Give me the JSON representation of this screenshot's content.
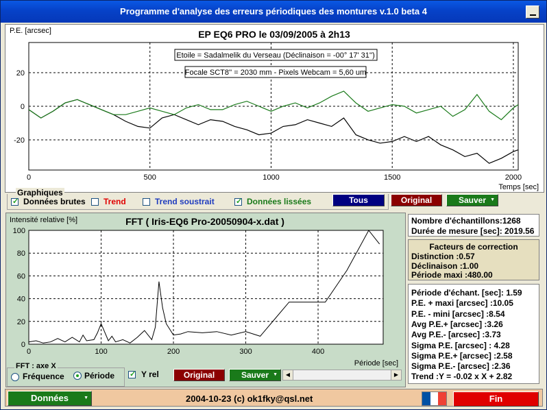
{
  "window": {
    "title": "Programme d'analyse des erreurs périodiques des montures v.1.0 beta 4"
  },
  "colors": {
    "accent_green": "#1a7a1a",
    "accent_red": "#e00000",
    "navy": "#000080",
    "maroon": "#8b0000",
    "fft_bg": "#c8dcc8",
    "status_bg": "#f0c8a0"
  },
  "top_chart": {
    "title": "EP EQ6 PRO le 03/09/2005 à 2h13",
    "ylabel": "P.E. [arcsec]",
    "xlabel": "Temps [sec]",
    "annotation_star": "Etoile = Sadalmelik du Verseau (Déclinaison = -00° 17' 31'')",
    "annotation_optics": "Focale SCT8'' = 2030 mm - Pixels Webcam = 5,60 um",
    "x_ticks": [
      "0",
      "500",
      "1000",
      "1500",
      "2000"
    ],
    "y_ticks": [
      "20",
      "0",
      "-20"
    ]
  },
  "chart_data": [
    {
      "type": "line",
      "title": "EP EQ6 PRO le 03/09/2005 à 2h13",
      "xlabel": "Temps [sec]",
      "ylabel": "P.E. [arcsec]",
      "xlim": [
        0,
        2020
      ],
      "ylim": [
        -38,
        38
      ],
      "grid": true,
      "series": [
        {
          "name": "Données brutes",
          "color": "#000000",
          "x": [
            0,
            50,
            100,
            150,
            200,
            250,
            300,
            350,
            400,
            450,
            500,
            550,
            600,
            650,
            700,
            750,
            800,
            850,
            900,
            950,
            1000,
            1050,
            1100,
            1150,
            1200,
            1250,
            1300,
            1350,
            1400,
            1450,
            1500,
            1550,
            1600,
            1650,
            1700,
            1750,
            1800,
            1850,
            1900,
            1950,
            2000,
            2020
          ],
          "y": [
            -2,
            -7,
            -3,
            2,
            4,
            1,
            -2,
            -5,
            -9,
            -12,
            -13,
            -7,
            -5,
            -8,
            -11,
            -8,
            -9,
            -12,
            -14,
            -17,
            -16,
            -12,
            -11,
            -8,
            -10,
            -12,
            -7,
            -17,
            -20,
            -22,
            -21,
            -18,
            -21,
            -18,
            -23,
            -26,
            -30,
            -28,
            -34,
            -31,
            -27,
            -26
          ]
        },
        {
          "name": "Données lissées",
          "color": "#1a7a1a",
          "x": [
            0,
            50,
            100,
            150,
            200,
            250,
            300,
            350,
            400,
            450,
            500,
            550,
            600,
            650,
            700,
            750,
            800,
            850,
            900,
            950,
            1000,
            1050,
            1100,
            1150,
            1200,
            1250,
            1300,
            1350,
            1400,
            1450,
            1500,
            1550,
            1600,
            1650,
            1700,
            1750,
            1800,
            1850,
            1900,
            1950,
            2000,
            2020
          ],
          "y": [
            -2,
            -7,
            -3,
            2,
            4,
            1,
            -2,
            -5,
            -5,
            -3,
            -1,
            -3,
            -5,
            -1,
            1,
            -2,
            -2,
            1,
            3,
            0,
            -3,
            0,
            2,
            -1,
            2,
            6,
            9,
            2,
            -3,
            -1,
            1,
            0,
            -4,
            -2,
            0,
            -6,
            -2,
            7,
            -3,
            -8,
            -1,
            1
          ]
        }
      ]
    },
    {
      "type": "line",
      "title": "FFT ( Iris-EQ6 Pro-20050904-x.dat )",
      "xlabel": "Période [sec]",
      "ylabel": "Intensité relative [%]",
      "xlim": [
        0,
        490
      ],
      "ylim": [
        0,
        100
      ],
      "grid": true,
      "series": [
        {
          "name": "FFT",
          "color": "#000000",
          "x": [
            0,
            10,
            20,
            30,
            40,
            50,
            60,
            70,
            75,
            80,
            90,
            95,
            100,
            110,
            115,
            120,
            130,
            140,
            150,
            160,
            170,
            175,
            180,
            185,
            190,
            200,
            210,
            220,
            240,
            260,
            280,
            300,
            320,
            340,
            360,
            380,
            410,
            440,
            470,
            485
          ],
          "y": [
            2,
            3,
            1,
            2,
            5,
            2,
            6,
            2,
            8,
            3,
            4,
            10,
            18,
            3,
            7,
            2,
            4,
            1,
            6,
            12,
            4,
            15,
            55,
            32,
            18,
            8,
            9,
            11,
            10,
            11,
            8,
            11,
            7,
            22,
            37,
            37,
            37,
            65,
            100,
            88
          ]
        }
      ]
    }
  ],
  "graphiques": {
    "label": "Graphiques",
    "cb_raw": "Données brutes",
    "cb_trend": "Trend",
    "cb_trend_sub": "Trend soustrait",
    "cb_smooth": "Données lissées",
    "btn_tous": "Tous",
    "btn_original": "Original",
    "btn_sauver": "Sauver"
  },
  "fft": {
    "title": "FFT ( Iris-EQ6 Pro-20050904-x.dat )",
    "ylabel": "Intensité relative [%]",
    "xlabel": "Période [sec]",
    "x_ticks": [
      "0",
      "100",
      "200",
      "300",
      "400"
    ],
    "y_ticks": [
      "100",
      "80",
      "60",
      "40",
      "20",
      "0"
    ]
  },
  "fft_axis": {
    "label": "FFT : axe X",
    "opt_freq": "Fréquence",
    "opt_period": "Période",
    "selected": "Période",
    "cb_yrel": "Y rel",
    "btn_original": "Original",
    "btn_sauver": "Sauver"
  },
  "info1": {
    "n_samples": "Nombre d'échantillons:1268",
    "duration": "Durée de mesure [sec]: 2019.56"
  },
  "correction": {
    "title": "Facteurs de correction",
    "distinction": "Distinction :0.57",
    "declinaison": "Déclinaison :1.00",
    "periode_maxi": "Période maxi :480.00"
  },
  "stats": {
    "periode_echant": "Période d'échant. [sec]: 1.59",
    "pe_plus": "P.E. + maxi [arcsec] :10.05",
    "pe_minus": "P.E. - mini [arcsec] :8.54",
    "avg_plus": "Avg P.E.+ [arcsec] :3.26",
    "avg_minus": "Avg P.E.- [arcsec] :3.73",
    "sigma": "Sigma P.E. [arcsec] : 4.28",
    "sigma_plus": "Sigma P.E.+ [arcsec] :2.58",
    "sigma_minus": "Sigma P.E.- [arcsec] :2.36",
    "trend": "Trend :Y = -0.02 x X + 2.82"
  },
  "status": {
    "donnees": "Données",
    "credits": "2004-10-23 (c) ok1fky@qsl.net",
    "fin": "Fin",
    "flag_colors": [
      "#0050a4",
      "#ffffff",
      "#ef4135"
    ]
  }
}
